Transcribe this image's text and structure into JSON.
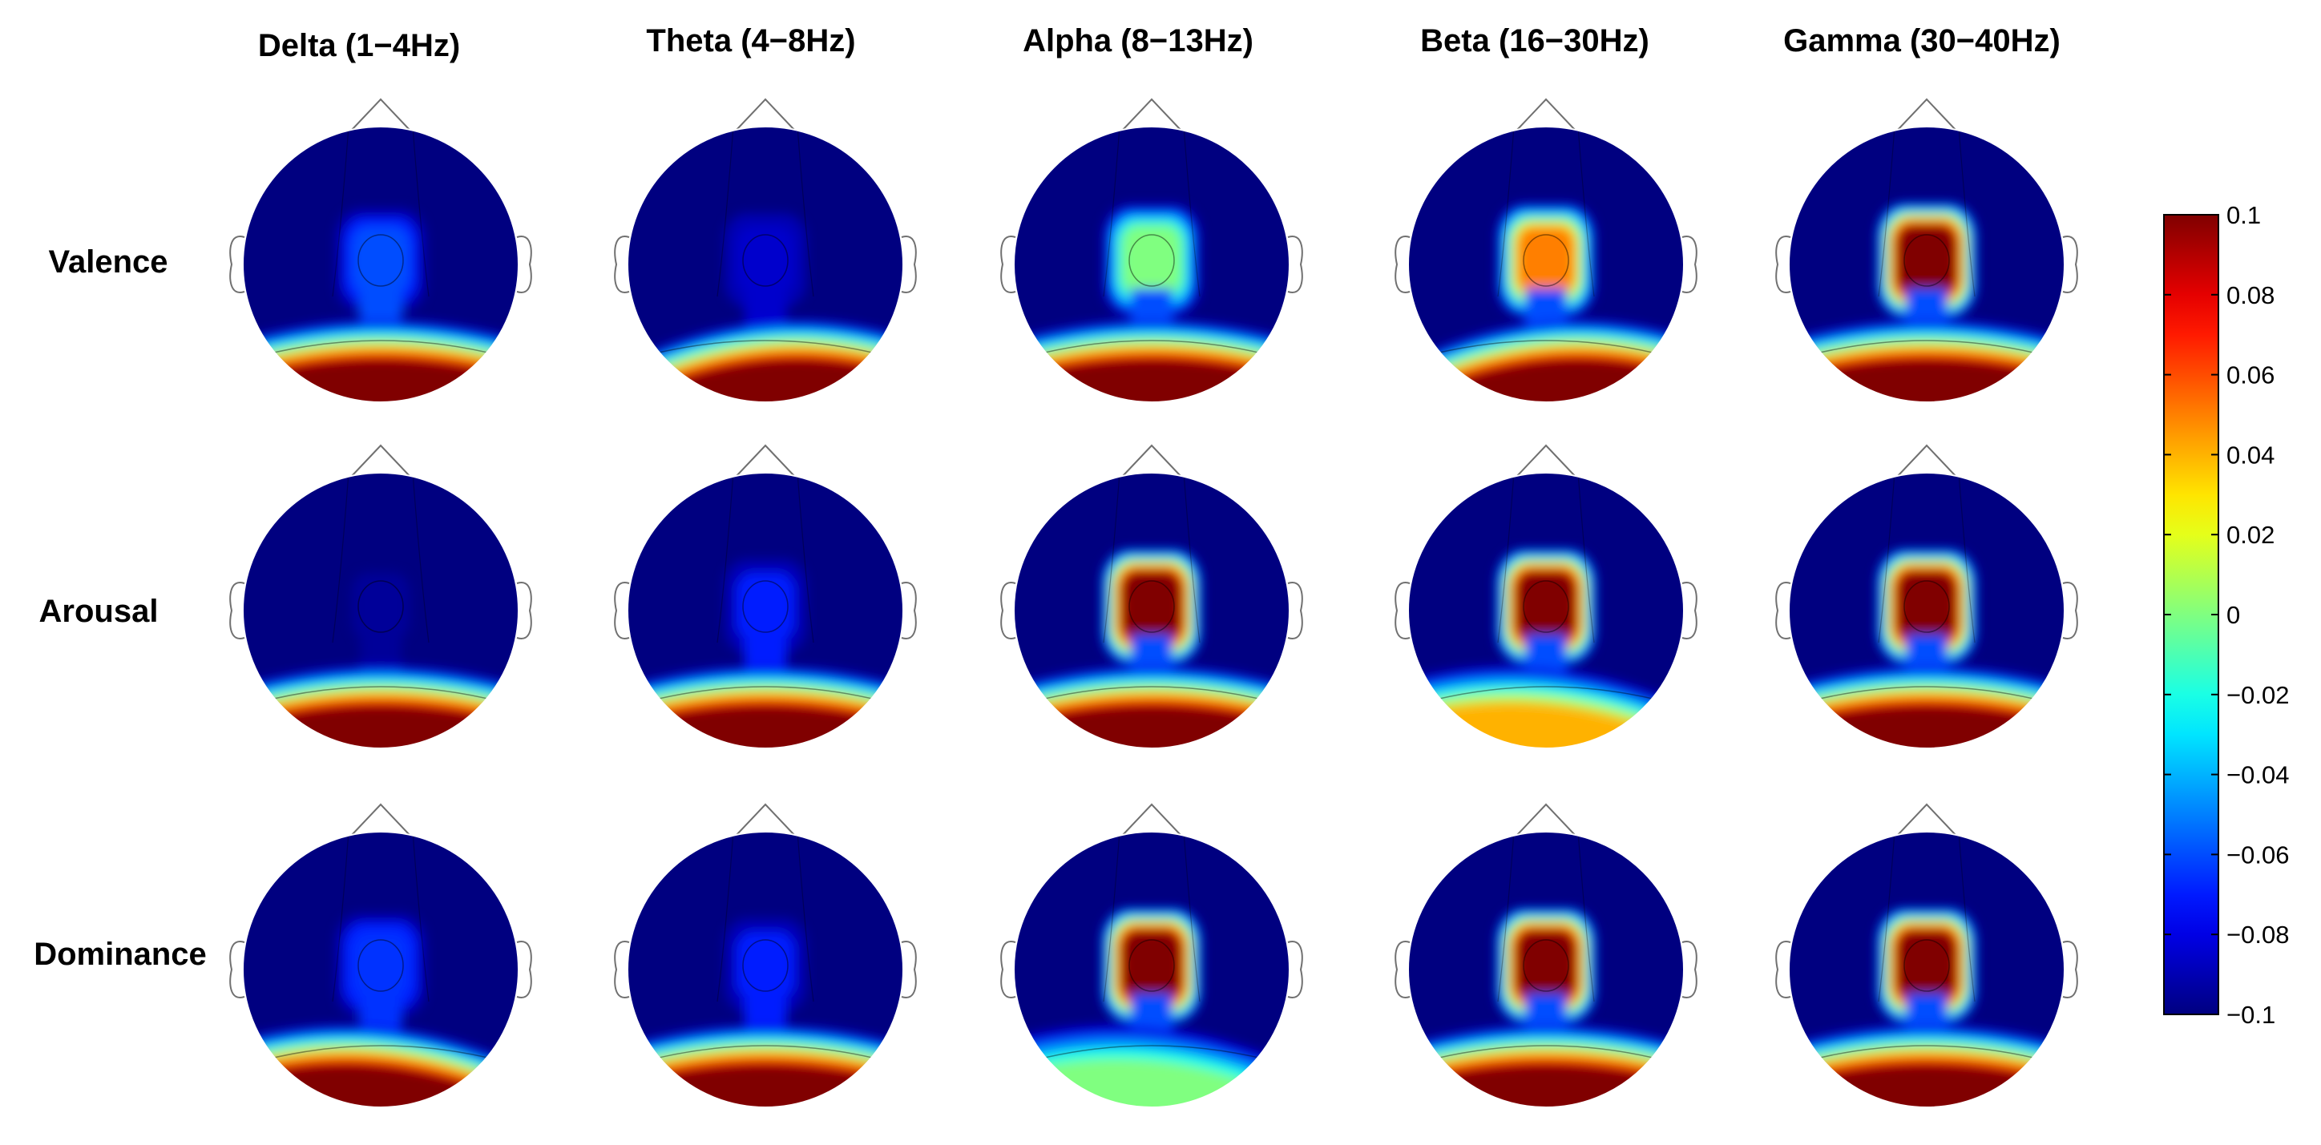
{
  "chart_data": {
    "type": "heatmap",
    "subtype": "eeg-scalp-topography-grid",
    "columns": [
      "Delta (1−4Hz)",
      "Theta (4−8Hz)",
      "Alpha (8−13Hz)",
      "Beta (16−30Hz)",
      "Gamma  (30−40Hz)"
    ],
    "rows": [
      "Valence",
      "Arousal",
      "Dominance"
    ],
    "colorbar": {
      "colormap": "jet",
      "min": -0.1,
      "max": 0.1,
      "ticks": [
        "0.1",
        "0.08",
        "0.06",
        "0.04",
        "0.02",
        "0",
        "−0.02",
        "−0.04",
        "−0.06",
        "−0.08",
        "−0.1"
      ],
      "tick_values": [
        0.1,
        0.08,
        0.06,
        0.04,
        0.02,
        0,
        -0.02,
        -0.04,
        -0.06,
        -0.08,
        -0.1
      ]
    },
    "maps": [
      [
        {
          "center": -0.06,
          "back": 0.1,
          "back_side": "center"
        },
        {
          "center": -0.085,
          "back": 0.1,
          "back_side": "right"
        },
        {
          "center": 0.0,
          "back": 0.1,
          "back_side": "center"
        },
        {
          "center": 0.05,
          "back": 0.1,
          "back_side": "right"
        },
        {
          "center": 0.1,
          "back": 0.1,
          "back_side": "center"
        }
      ],
      [
        {
          "center": -0.095,
          "back": 0.1,
          "back_side": "center"
        },
        {
          "center": -0.07,
          "back": 0.1,
          "back_side": "center"
        },
        {
          "center": 0.1,
          "back": 0.1,
          "back_side": "center"
        },
        {
          "center": 0.1,
          "back": 0.04,
          "back_side": "left"
        },
        {
          "center": 0.1,
          "back": 0.1,
          "back_side": "center"
        }
      ],
      [
        {
          "center": -0.065,
          "back": 0.1,
          "back_side": "left"
        },
        {
          "center": -0.07,
          "back": 0.1,
          "back_side": "center"
        },
        {
          "center": 0.1,
          "back": 0.0,
          "back_side": "left"
        },
        {
          "center": 0.1,
          "back": 0.1,
          "back_side": "center"
        },
        {
          "center": 0.1,
          "back": 0.1,
          "back_side": "center"
        }
      ]
    ]
  }
}
